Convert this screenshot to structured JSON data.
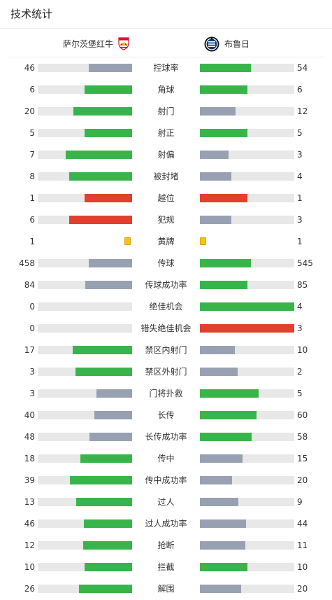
{
  "header": {
    "title": "技术统计"
  },
  "teams": {
    "home": {
      "name": "萨尔茨堡红牛",
      "crest_icon": "red-bull-salzburg-crest-icon"
    },
    "away": {
      "name": "布鲁日",
      "crest_icon": "club-brugge-crest-icon"
    }
  },
  "colors": {
    "better": "#38b54a",
    "worse": "#98a1b1",
    "negative": "#e0402d",
    "track": "#e8e8e8",
    "yellow_card": "#f8c21a"
  },
  "stats": [
    {
      "label": "控球率",
      "home": "46",
      "away": "54",
      "home_ratio": 0.46,
      "away_ratio": 0.54,
      "home_color": "worse",
      "away_color": "better"
    },
    {
      "label": "角球",
      "home": "6",
      "away": "6",
      "home_ratio": 0.5,
      "away_ratio": 0.5,
      "home_color": "better",
      "away_color": "better"
    },
    {
      "label": "射门",
      "home": "20",
      "away": "12",
      "home_ratio": 0.625,
      "away_ratio": 0.375,
      "home_color": "better",
      "away_color": "worse"
    },
    {
      "label": "射正",
      "home": "5",
      "away": "5",
      "home_ratio": 0.5,
      "away_ratio": 0.5,
      "home_color": "better",
      "away_color": "better"
    },
    {
      "label": "射偏",
      "home": "7",
      "away": "3",
      "home_ratio": 0.7,
      "away_ratio": 0.3,
      "home_color": "better",
      "away_color": "worse"
    },
    {
      "label": "被封堵",
      "home": "8",
      "away": "4",
      "home_ratio": 0.667,
      "away_ratio": 0.333,
      "home_color": "better",
      "away_color": "worse"
    },
    {
      "label": "越位",
      "home": "1",
      "away": "1",
      "home_ratio": 0.5,
      "away_ratio": 0.5,
      "home_color": "negative",
      "away_color": "negative"
    },
    {
      "label": "犯规",
      "home": "6",
      "away": "3",
      "home_ratio": 0.667,
      "away_ratio": 0.333,
      "home_color": "negative",
      "away_color": "worse"
    },
    {
      "label": "黄牌",
      "home": "1",
      "away": "1",
      "type": "card"
    },
    {
      "label": "传球",
      "home": "458",
      "away": "545",
      "home_ratio": 0.457,
      "away_ratio": 0.543,
      "home_color": "worse",
      "away_color": "better"
    },
    {
      "label": "传球成功率",
      "home": "84",
      "away": "85",
      "home_ratio": 0.497,
      "away_ratio": 0.503,
      "home_color": "worse",
      "away_color": "better"
    },
    {
      "label": "绝佳机会",
      "home": "0",
      "away": "4",
      "home_ratio": 0,
      "away_ratio": 1,
      "home_color": "worse",
      "away_color": "better"
    },
    {
      "label": "错失绝佳机会",
      "home": "0",
      "away": "3",
      "home_ratio": 0,
      "away_ratio": 1,
      "home_color": "worse",
      "away_color": "negative"
    },
    {
      "label": "禁区内射门",
      "home": "17",
      "away": "10",
      "home_ratio": 0.63,
      "away_ratio": 0.37,
      "home_color": "better",
      "away_color": "worse"
    },
    {
      "label": "禁区外射门",
      "home": "3",
      "away": "2",
      "home_ratio": 0.6,
      "away_ratio": 0.4,
      "home_color": "better",
      "away_color": "worse"
    },
    {
      "label": "门将扑救",
      "home": "3",
      "away": "5",
      "home_ratio": 0.375,
      "away_ratio": 0.625,
      "home_color": "worse",
      "away_color": "better"
    },
    {
      "label": "长传",
      "home": "40",
      "away": "60",
      "home_ratio": 0.4,
      "away_ratio": 0.6,
      "home_color": "worse",
      "away_color": "better"
    },
    {
      "label": "长传成功率",
      "home": "48",
      "away": "58",
      "home_ratio": 0.453,
      "away_ratio": 0.547,
      "home_color": "worse",
      "away_color": "better"
    },
    {
      "label": "传中",
      "home": "18",
      "away": "15",
      "home_ratio": 0.545,
      "away_ratio": 0.455,
      "home_color": "better",
      "away_color": "worse"
    },
    {
      "label": "传中成功率",
      "home": "39",
      "away": "20",
      "home_ratio": 0.661,
      "away_ratio": 0.339,
      "home_color": "better",
      "away_color": "worse"
    },
    {
      "label": "过人",
      "home": "13",
      "away": "9",
      "home_ratio": 0.591,
      "away_ratio": 0.409,
      "home_color": "better",
      "away_color": "worse"
    },
    {
      "label": "过人成功率",
      "home": "46",
      "away": "44",
      "home_ratio": 0.511,
      "away_ratio": 0.489,
      "home_color": "better",
      "away_color": "worse"
    },
    {
      "label": "抢断",
      "home": "12",
      "away": "11",
      "home_ratio": 0.522,
      "away_ratio": 0.478,
      "home_color": "better",
      "away_color": "worse"
    },
    {
      "label": "拦截",
      "home": "10",
      "away": "10",
      "home_ratio": 0.5,
      "away_ratio": 0.5,
      "home_color": "better",
      "away_color": "better"
    },
    {
      "label": "解围",
      "home": "26",
      "away": "20",
      "home_ratio": 0.565,
      "away_ratio": 0.435,
      "home_color": "better",
      "away_color": "worse"
    }
  ]
}
